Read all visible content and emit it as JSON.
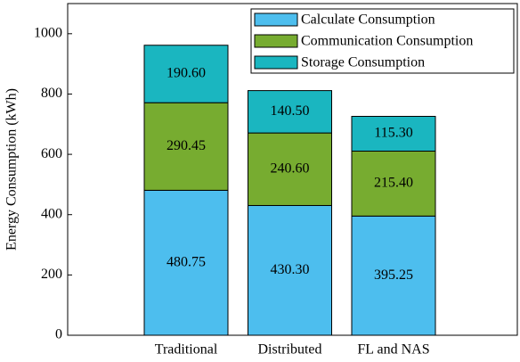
{
  "chart_data": {
    "type": "stacked_bar",
    "y_label": "Energy Consumption (kWh)",
    "categories": [
      "Traditional",
      "Distributed",
      "FL and NAS"
    ],
    "series": [
      {
        "name": "Calculate Consumption",
        "color": "#4dbeee",
        "values": [
          480.75,
          430.3,
          395.25
        ],
        "value_labels": [
          "480.75",
          "430.30",
          "395.25"
        ]
      },
      {
        "name": "Communication Consumption",
        "color": "#77ac30",
        "values": [
          290.45,
          240.6,
          215.4
        ],
        "value_labels": [
          "290.45",
          "240.60",
          "215.40"
        ]
      },
      {
        "name": "Storage Consumption",
        "color": "#1ab6c0",
        "values": [
          190.6,
          140.5,
          115.3
        ],
        "value_labels": [
          "190.60",
          "140.50",
          "115.30"
        ]
      }
    ],
    "ylim": [
      0,
      1100
    ],
    "yticks": [
      0,
      200,
      400,
      600,
      800,
      1000
    ],
    "legend": "upper right"
  }
}
